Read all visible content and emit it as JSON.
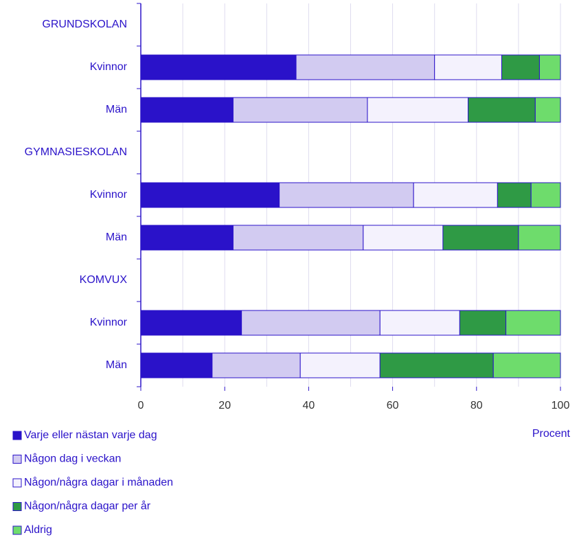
{
  "chart_data": {
    "type": "stacked_barh",
    "categories": [
      "GRUNDSKOLAN",
      "Kvinnor",
      "Män",
      "GYMNASIESKOLAN",
      "Kvinnor",
      "Män",
      "KOMVUX",
      "Kvinnor",
      "Män"
    ],
    "series": [
      {
        "name": "Varje eller nästan varje dag",
        "color": "#2a12c9",
        "values": [
          null,
          37,
          22,
          null,
          33,
          22,
          null,
          24,
          17
        ]
      },
      {
        "name": "Någon dag i veckan",
        "color": "#d2cbf1",
        "values": [
          null,
          33,
          32,
          null,
          32,
          31,
          null,
          33,
          21
        ]
      },
      {
        "name": "Någon/några dagar i månaden",
        "color": "#f4f2fd",
        "values": [
          null,
          16,
          24,
          null,
          20,
          19,
          null,
          19,
          19
        ]
      },
      {
        "name": "Någon/några dagar per år",
        "color": "#2f9a45",
        "values": [
          null,
          9,
          16,
          null,
          8,
          18,
          null,
          11,
          27
        ]
      },
      {
        "name": "Aldrig",
        "color": "#6edc6c",
        "values": [
          null,
          5,
          6,
          null,
          7,
          10,
          null,
          13,
          16
        ]
      }
    ],
    "xlabel": "Procent",
    "xlim": [
      0,
      100
    ],
    "xticks": [
      0,
      20,
      40,
      60,
      80,
      100
    ],
    "grid": [
      10,
      20,
      30,
      40,
      50,
      60,
      70,
      80,
      90,
      100
    ]
  }
}
